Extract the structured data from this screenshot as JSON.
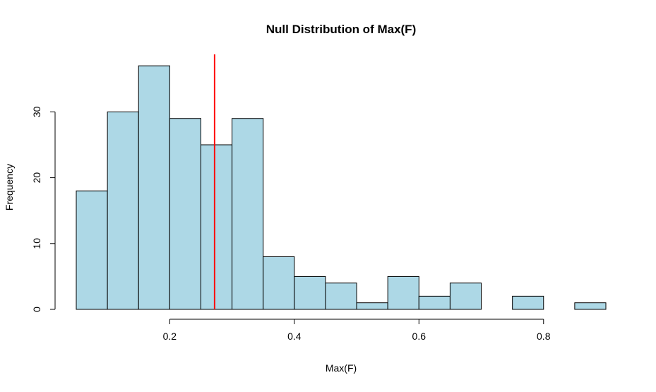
{
  "chart_data": {
    "type": "histogram",
    "title": "Null Distribution of Max(F)",
    "xlabel": "Max(F)",
    "ylabel": "Frequency",
    "bins": [
      {
        "x0": 0.05,
        "x1": 0.1,
        "count": 18
      },
      {
        "x0": 0.1,
        "x1": 0.15,
        "count": 30
      },
      {
        "x0": 0.15,
        "x1": 0.2,
        "count": 37
      },
      {
        "x0": 0.2,
        "x1": 0.25,
        "count": 29
      },
      {
        "x0": 0.25,
        "x1": 0.3,
        "count": 25
      },
      {
        "x0": 0.3,
        "x1": 0.35,
        "count": 29
      },
      {
        "x0": 0.35,
        "x1": 0.4,
        "count": 8
      },
      {
        "x0": 0.4,
        "x1": 0.45,
        "count": 5
      },
      {
        "x0": 0.45,
        "x1": 0.5,
        "count": 4
      },
      {
        "x0": 0.5,
        "x1": 0.55,
        "count": 1
      },
      {
        "x0": 0.55,
        "x1": 0.6,
        "count": 5
      },
      {
        "x0": 0.6,
        "x1": 0.65,
        "count": 2
      },
      {
        "x0": 0.65,
        "x1": 0.7,
        "count": 4
      },
      {
        "x0": 0.7,
        "x1": 0.75,
        "count": 0
      },
      {
        "x0": 0.75,
        "x1": 0.8,
        "count": 2
      },
      {
        "x0": 0.8,
        "x1": 0.85,
        "count": 0
      },
      {
        "x0": 0.85,
        "x1": 0.9,
        "count": 1
      }
    ],
    "xticks": [
      0.2,
      0.4,
      0.6,
      0.8
    ],
    "xtick_labels": [
      "0.2",
      "0.4",
      "0.6",
      "0.8"
    ],
    "yticks": [
      0,
      10,
      20,
      30
    ],
    "ytick_labels": [
      "0",
      "10",
      "20",
      "30"
    ],
    "xlim": [
      0.05,
      0.9
    ],
    "ylim": [
      0,
      38
    ],
    "vline": {
      "x": 0.272,
      "color": "#ff0000"
    },
    "bar_fill": "#add8e6",
    "bar_stroke": "#000000",
    "grid": false,
    "legend": "none"
  }
}
